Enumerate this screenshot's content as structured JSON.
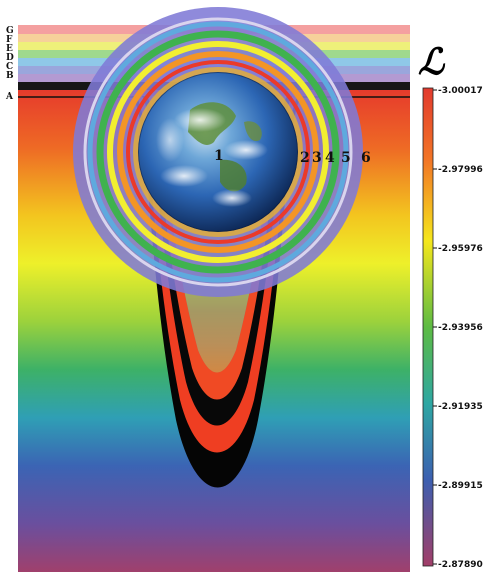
{
  "figure": {
    "symbol": "ℒ",
    "band_letters": [
      "G",
      "F",
      "E",
      "D",
      "C",
      "B",
      "A"
    ],
    "shell_numbers": [
      "1",
      "2",
      "3",
      "4",
      "5",
      "6"
    ],
    "colorbar_ticks": [
      "-3.00017",
      "-2.97996",
      "-2.95976",
      "-2.93956",
      "-2.91935",
      "-2.89915",
      "-2.87890"
    ]
  },
  "colors": {
    "rainbow_top": "#e8402a",
    "rainbow_yellow": "#f2e81a",
    "rainbow_green": "#4cb04a",
    "rainbow_blue": "#3f6bb5",
    "rainbow_bottom": "#9a3f73",
    "well_red": "#ef3e22",
    "well_black": "#050505",
    "shell_blue": "#7a78d8",
    "earth_blue": "#2d6fc0"
  }
}
